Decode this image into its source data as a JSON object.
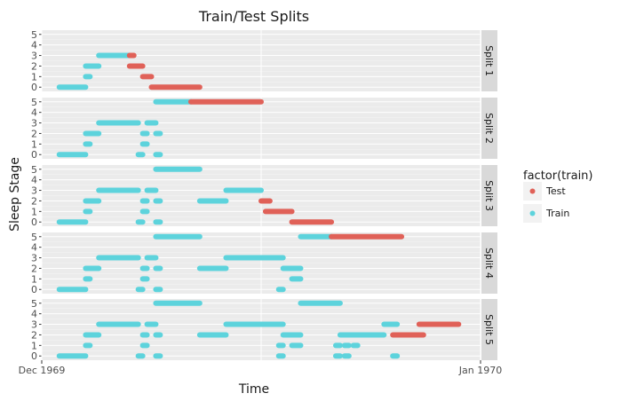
{
  "chart_data": {
    "type": "line",
    "title": "Train/Test Splits",
    "xlabel": "Time",
    "ylabel": "Sleep Stage",
    "x_ticks": [
      "Dec 1969",
      "Jan 1970"
    ],
    "y_ticks": [
      0,
      1,
      2,
      3,
      4,
      5
    ],
    "ylim": [
      -0.4,
      5.4
    ],
    "legend": {
      "title": "factor(train)",
      "placement": "right",
      "entries": [
        {
          "label": "Test",
          "color": "#e06158"
        },
        {
          "label": "Train",
          "color": "#5dd3dc"
        }
      ]
    },
    "panels": [
      {
        "label": "Split 1",
        "segments": [
          {
            "group": "Train",
            "stage": 0,
            "start": 0.04,
            "end": 0.1
          },
          {
            "group": "Train",
            "stage": 1,
            "start": 0.1,
            "end": 0.11
          },
          {
            "group": "Train",
            "stage": 2,
            "start": 0.1,
            "end": 0.13
          },
          {
            "group": "Train",
            "stage": 3,
            "start": 0.13,
            "end": 0.2
          },
          {
            "group": "Test",
            "stage": 3,
            "start": 0.2,
            "end": 0.21
          },
          {
            "group": "Test",
            "stage": 2,
            "start": 0.2,
            "end": 0.23
          },
          {
            "group": "Test",
            "stage": 1,
            "start": 0.23,
            "end": 0.25
          },
          {
            "group": "Test",
            "stage": 0,
            "start": 0.25,
            "end": 0.36
          }
        ]
      },
      {
        "label": "Split 2",
        "segments": [
          {
            "group": "Train",
            "stage": 0,
            "start": 0.04,
            "end": 0.1
          },
          {
            "group": "Train",
            "stage": 0,
            "start": 0.22,
            "end": 0.23
          },
          {
            "group": "Train",
            "stage": 0,
            "start": 0.26,
            "end": 0.27
          },
          {
            "group": "Train",
            "stage": 1,
            "start": 0.1,
            "end": 0.11
          },
          {
            "group": "Train",
            "stage": 1,
            "start": 0.23,
            "end": 0.24
          },
          {
            "group": "Train",
            "stage": 2,
            "start": 0.1,
            "end": 0.13
          },
          {
            "group": "Train",
            "stage": 2,
            "start": 0.23,
            "end": 0.24
          },
          {
            "group": "Train",
            "stage": 2,
            "start": 0.26,
            "end": 0.27
          },
          {
            "group": "Train",
            "stage": 3,
            "start": 0.13,
            "end": 0.22
          },
          {
            "group": "Train",
            "stage": 3,
            "start": 0.24,
            "end": 0.26
          },
          {
            "group": "Train",
            "stage": 5,
            "start": 0.26,
            "end": 0.34
          },
          {
            "group": "Test",
            "stage": 5,
            "start": 0.34,
            "end": 0.5
          }
        ]
      },
      {
        "label": "Split 3",
        "segments": [
          {
            "group": "Train",
            "stage": 0,
            "start": 0.04,
            "end": 0.1
          },
          {
            "group": "Train",
            "stage": 0,
            "start": 0.22,
            "end": 0.23
          },
          {
            "group": "Train",
            "stage": 0,
            "start": 0.26,
            "end": 0.27
          },
          {
            "group": "Train",
            "stage": 1,
            "start": 0.1,
            "end": 0.11
          },
          {
            "group": "Train",
            "stage": 1,
            "start": 0.23,
            "end": 0.24
          },
          {
            "group": "Train",
            "stage": 2,
            "start": 0.1,
            "end": 0.13
          },
          {
            "group": "Train",
            "stage": 2,
            "start": 0.23,
            "end": 0.24
          },
          {
            "group": "Train",
            "stage": 2,
            "start": 0.26,
            "end": 0.27
          },
          {
            "group": "Train",
            "stage": 2,
            "start": 0.36,
            "end": 0.42
          },
          {
            "group": "Train",
            "stage": 3,
            "start": 0.13,
            "end": 0.22
          },
          {
            "group": "Train",
            "stage": 3,
            "start": 0.24,
            "end": 0.26
          },
          {
            "group": "Train",
            "stage": 3,
            "start": 0.42,
            "end": 0.5
          },
          {
            "group": "Train",
            "stage": 5,
            "start": 0.26,
            "end": 0.36
          },
          {
            "group": "Test",
            "stage": 2,
            "start": 0.5,
            "end": 0.52
          },
          {
            "group": "Test",
            "stage": 1,
            "start": 0.51,
            "end": 0.57
          },
          {
            "group": "Test",
            "stage": 0,
            "start": 0.57,
            "end": 0.66
          }
        ]
      },
      {
        "label": "Split 4",
        "segments": [
          {
            "group": "Train",
            "stage": 0,
            "start": 0.04,
            "end": 0.1
          },
          {
            "group": "Train",
            "stage": 0,
            "start": 0.22,
            "end": 0.23
          },
          {
            "group": "Train",
            "stage": 0,
            "start": 0.26,
            "end": 0.27
          },
          {
            "group": "Train",
            "stage": 0,
            "start": 0.54,
            "end": 0.55
          },
          {
            "group": "Train",
            "stage": 1,
            "start": 0.1,
            "end": 0.11
          },
          {
            "group": "Train",
            "stage": 1,
            "start": 0.23,
            "end": 0.24
          },
          {
            "group": "Train",
            "stage": 1,
            "start": 0.57,
            "end": 0.59
          },
          {
            "group": "Train",
            "stage": 2,
            "start": 0.1,
            "end": 0.13
          },
          {
            "group": "Train",
            "stage": 2,
            "start": 0.23,
            "end": 0.24
          },
          {
            "group": "Train",
            "stage": 2,
            "start": 0.26,
            "end": 0.27
          },
          {
            "group": "Train",
            "stage": 2,
            "start": 0.36,
            "end": 0.42
          },
          {
            "group": "Train",
            "stage": 2,
            "start": 0.55,
            "end": 0.59
          },
          {
            "group": "Train",
            "stage": 3,
            "start": 0.13,
            "end": 0.22
          },
          {
            "group": "Train",
            "stage": 3,
            "start": 0.24,
            "end": 0.26
          },
          {
            "group": "Train",
            "stage": 3,
            "start": 0.42,
            "end": 0.55
          },
          {
            "group": "Train",
            "stage": 5,
            "start": 0.26,
            "end": 0.36
          },
          {
            "group": "Train",
            "stage": 5,
            "start": 0.59,
            "end": 0.66
          },
          {
            "group": "Test",
            "stage": 5,
            "start": 0.66,
            "end": 0.82
          }
        ]
      },
      {
        "label": "Split 5",
        "segments": [
          {
            "group": "Train",
            "stage": 0,
            "start": 0.04,
            "end": 0.1
          },
          {
            "group": "Train",
            "stage": 0,
            "start": 0.22,
            "end": 0.23
          },
          {
            "group": "Train",
            "stage": 0,
            "start": 0.26,
            "end": 0.27
          },
          {
            "group": "Train",
            "stage": 0,
            "start": 0.54,
            "end": 0.55
          },
          {
            "group": "Train",
            "stage": 0,
            "start": 0.67,
            "end": 0.68
          },
          {
            "group": "Train",
            "stage": 0,
            "start": 0.69,
            "end": 0.7
          },
          {
            "group": "Train",
            "stage": 0,
            "start": 0.8,
            "end": 0.81
          },
          {
            "group": "Train",
            "stage": 1,
            "start": 0.1,
            "end": 0.11
          },
          {
            "group": "Train",
            "stage": 1,
            "start": 0.23,
            "end": 0.24
          },
          {
            "group": "Train",
            "stage": 1,
            "start": 0.54,
            "end": 0.55
          },
          {
            "group": "Train",
            "stage": 1,
            "start": 0.57,
            "end": 0.59
          },
          {
            "group": "Train",
            "stage": 1,
            "start": 0.67,
            "end": 0.68
          },
          {
            "group": "Train",
            "stage": 1,
            "start": 0.69,
            "end": 0.7
          },
          {
            "group": "Train",
            "stage": 1,
            "start": 0.71,
            "end": 0.72
          },
          {
            "group": "Train",
            "stage": 2,
            "start": 0.1,
            "end": 0.13
          },
          {
            "group": "Train",
            "stage": 2,
            "start": 0.23,
            "end": 0.24
          },
          {
            "group": "Train",
            "stage": 2,
            "start": 0.26,
            "end": 0.27
          },
          {
            "group": "Train",
            "stage": 2,
            "start": 0.36,
            "end": 0.42
          },
          {
            "group": "Train",
            "stage": 2,
            "start": 0.55,
            "end": 0.59
          },
          {
            "group": "Train",
            "stage": 2,
            "start": 0.68,
            "end": 0.78
          },
          {
            "group": "Train",
            "stage": 3,
            "start": 0.13,
            "end": 0.22
          },
          {
            "group": "Train",
            "stage": 3,
            "start": 0.24,
            "end": 0.26
          },
          {
            "group": "Train",
            "stage": 3,
            "start": 0.42,
            "end": 0.55
          },
          {
            "group": "Train",
            "stage": 3,
            "start": 0.78,
            "end": 0.81
          },
          {
            "group": "Train",
            "stage": 5,
            "start": 0.26,
            "end": 0.36
          },
          {
            "group": "Train",
            "stage": 5,
            "start": 0.59,
            "end": 0.68
          },
          {
            "group": "Test",
            "stage": 2,
            "start": 0.8,
            "end": 0.87
          },
          {
            "group": "Test",
            "stage": 3,
            "start": 0.86,
            "end": 0.95
          }
        ]
      }
    ]
  }
}
